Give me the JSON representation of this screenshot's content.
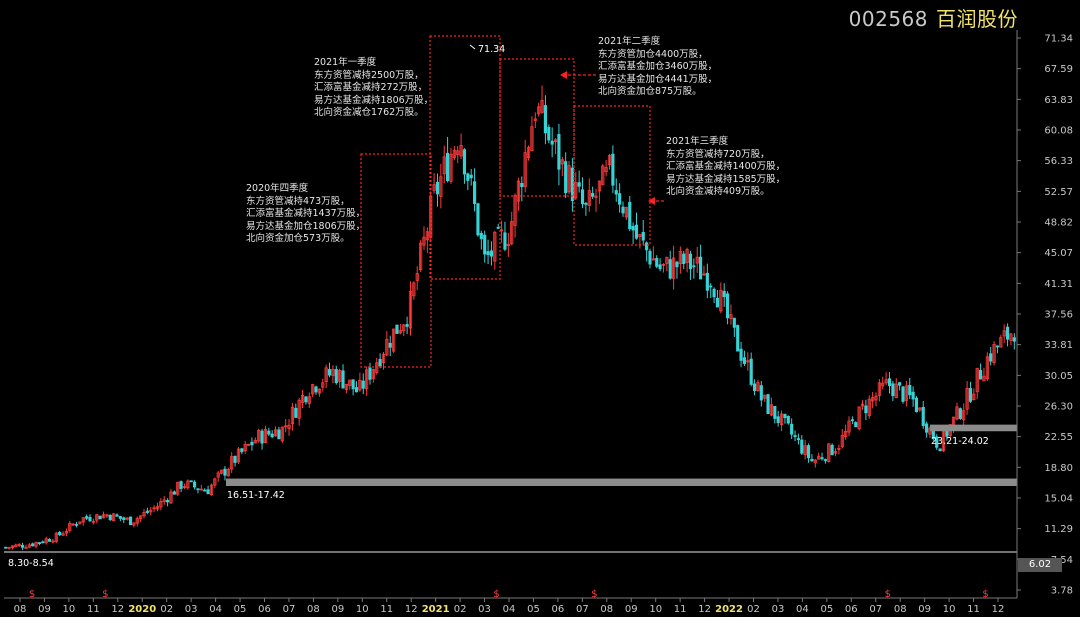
{
  "title": {
    "code": "002568",
    "name": "百润股份"
  },
  "notes": [
    {
      "id": "q4-2020",
      "lines": [
        "2020年四季度",
        "东方资管减持473万股，",
        "汇添富基金减持1437万股，",
        "易方达基金加仓1806万股，",
        "北向资金加仓573万股。"
      ]
    },
    {
      "id": "q1-2021",
      "lines": [
        "2021年一季度",
        "东方资管减持2500万股，",
        "汇添富基金减持272万股，",
        "易方达基金减持1806万股，",
        "北向资金减仓1762万股。"
      ]
    },
    {
      "id": "q2-2021",
      "lines": [
        "2021年二季度",
        "东方资管加仓4400万股，",
        "汇添富基金加仓3460万股，",
        "易方达基金加仓4441万股，",
        "北向资金加仓875万股。"
      ]
    },
    {
      "id": "q3-2021",
      "lines": [
        "2021年三季度",
        "东方资管减持720万股，",
        "汇添富基金减持1400万股，",
        "易方达基金减持1585万股，",
        "北向资金减持409万股。"
      ]
    }
  ],
  "last_price": "6.02",
  "colors": {
    "up": "#ff3b3b",
    "down": "#36d2d6",
    "axis": "#7a7a7a",
    "box": "#ff2020",
    "band": "#8c8c8c",
    "title_name": "#f3e36a"
  },
  "chart_data": {
    "type": "candlestick",
    "y_ticks": [
      "71.34",
      "67.59",
      "63.83",
      "60.08",
      "56.33",
      "52.57",
      "48.82",
      "45.07",
      "41.31",
      "37.56",
      "33.81",
      "30.05",
      "26.30",
      "22.55",
      "18.80",
      "15.04",
      "11.29",
      "7.54",
      "3.78"
    ],
    "ylim": [
      3.78,
      71.34
    ],
    "x_ticks": [
      "08",
      "09",
      "10",
      "11",
      "12",
      "2020",
      "02",
      "03",
      "04",
      "05",
      "06",
      "07",
      "08",
      "09",
      "10",
      "11",
      "12",
      "2021",
      "02",
      "03",
      "04",
      "05",
      "06",
      "07",
      "08",
      "09",
      "10",
      "11",
      "12",
      "2022",
      "02",
      "03",
      "04",
      "05",
      "06",
      "07",
      "08",
      "09",
      "10",
      "11",
      "12"
    ],
    "year_ticks": [
      "2020",
      "2021",
      "2022"
    ],
    "dividend_marker": "$",
    "dividend_months": [
      "08",
      "11",
      "2021-05",
      "2021-09",
      "2022-05",
      "2022-09"
    ],
    "approx_close_by_month": [
      9.0,
      9.4,
      10.3,
      12.5,
      13.0,
      12.2,
      14.0,
      16.8,
      16.0,
      19.5,
      22.5,
      23.5,
      28.5,
      30.5,
      28.0,
      33.5,
      38.0,
      52.0,
      60.0,
      44.0,
      48.0,
      63.0,
      56.0,
      50.0,
      55.0,
      47.0,
      43.0,
      44.0,
      42.0,
      34.0,
      27.0,
      23.5,
      19.5,
      21.5,
      26.0,
      29.0,
      27.0,
      21.5,
      26.5,
      32.5,
      35.8
    ],
    "annotations": [
      {
        "text": "71.34",
        "type": "peak"
      },
      {
        "text": "16.51-17.42",
        "type": "support",
        "range": [
          16.51,
          17.42
        ]
      },
      {
        "text": "23.21-24.02",
        "type": "support",
        "range": [
          23.21,
          24.02
        ]
      },
      {
        "text": "8.30-8.54",
        "type": "support",
        "range": [
          8.3,
          8.54
        ]
      }
    ],
    "boxes": [
      {
        "quarter": "2020Q4",
        "price_range": [
          31.0,
          57.0
        ]
      },
      {
        "quarter": "2021Q1",
        "price_range": [
          42.0,
          71.34
        ]
      },
      {
        "quarter": "2021Q2",
        "price_range": [
          52.0,
          69.0
        ]
      },
      {
        "quarter": "2021Q3",
        "price_range": [
          46.0,
          62.5
        ]
      }
    ]
  }
}
